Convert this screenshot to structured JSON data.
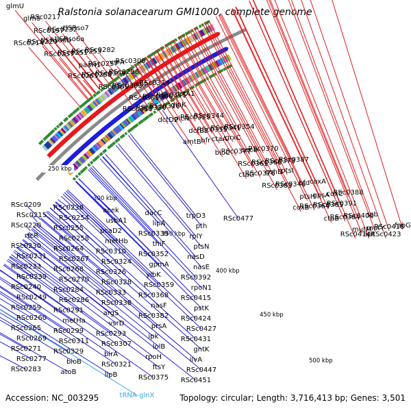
{
  "title": "Ralstonia solanacearum GMI1000, complete genome",
  "footer": {
    "accession": "Accession: NC_003295",
    "summary": "Topology: circular; Length: 3,716,413 bp; Genes: 3,501"
  },
  "colors": {
    "forward_strand": "#e41a1c",
    "reverse_strand": "#1f1fd8",
    "rna_label": "#39a8e0",
    "backbone": "#8a8a8a",
    "feature_marker": "#2e8b2e"
  },
  "scale_labels": [
    "250 kbp",
    "300 kbp",
    "350 kbp",
    "400 kbp",
    "450 kbp",
    "500 kbp"
  ],
  "forward_labels": [
    "glmU",
    "glmS",
    "RSc0197",
    "RSc0214",
    "RSc0217",
    "RSc0232",
    "RSc0229",
    "RSc0237",
    "tlSRso7",
    "tlSRso6b",
    "RSc0251",
    "paaH1",
    "tlSRso6a",
    "RSc0253",
    "RSc0257",
    "RSc0281",
    "RSc0282",
    "vsrA",
    "RSc0288",
    "RSc0305",
    "RSc0308",
    "RSc0304",
    "RSc0303",
    "RSc0301",
    "RSc0296",
    "aut",
    "RSc0306",
    "RSc0313",
    "RSc0314",
    "RSc0315",
    "RSc0320",
    "dctD2",
    "dctA1",
    "RSc0316",
    "plcN",
    "dctB2",
    "glnK",
    "RSc0325",
    "RSc0335",
    "amtB",
    "RSc0344",
    "RSc0341",
    "bfr",
    "bioC",
    "RSc0354",
    "ctaA",
    "RSc0377",
    "RSc0361",
    "grxC",
    "secB",
    "RSc0366",
    "ctaG",
    "RSc0370",
    "RSc0373",
    "RSc0376",
    "RSc0383",
    "RSc0387",
    "gshB",
    "RSc0346",
    "ptsH",
    "ptsI",
    "bfd",
    "gpsA",
    "coxB",
    "coxA",
    "coxC",
    "RSc0364",
    "ctaB",
    "RSc0388",
    "RSc0385",
    "RSc0384",
    "mutM",
    "RSc0391",
    "RSc0400",
    "mutY",
    "RSc0414",
    "ssb",
    "RSc0418",
    "apt",
    "RSc0423",
    "fabG"
  ],
  "reverse_labels": [
    "RSc0209",
    "RSc0215",
    "RSc0220",
    "rtcR",
    "RSc0230",
    "RSc0231",
    "RSc0233",
    "RSc0239",
    "RSc0240",
    "RSc0249",
    "RSc0259",
    "RSc0260",
    "RSc0265",
    "RSc0269",
    "RSc0271",
    "RSc0277",
    "RSc0283",
    "RSc0238",
    "RSc0254",
    "RSc0255",
    "RSc0258",
    "RSc0264",
    "RSc0267",
    "RSc0268",
    "RSc0270",
    "RSc0284",
    "RSc0286",
    "RSc0291",
    "metHa",
    "RSc0299",
    "RSc0311",
    "RSc0329",
    "bioB",
    "atoB",
    "acek",
    "usbA1",
    "pcaD2",
    "metHb",
    "RSc0310",
    "RSc0324",
    "RSc0326",
    "RSc0328",
    "RSc0333",
    "RSc0338",
    "argS",
    "vsrD",
    "RSc0293",
    "RSc0307",
    "birA",
    "RSc0321",
    "lipB",
    "dacC",
    "lipA",
    "RSc0339",
    "thiF",
    "RSc0352",
    "gpmA",
    "yibK",
    "RSc0359",
    "RSc0368",
    "nasF",
    "RSc0382",
    "prsA",
    "ipk",
    "lolB",
    "rpoH",
    "ftsY",
    "RSc0375",
    "trpD3",
    "pth",
    "rplY",
    "ptsN",
    "nasD",
    "nasE",
    "RSc0392",
    "rpoN1",
    "RSc0415",
    "pstK",
    "RSc0424",
    "RSc0427",
    "RSc0431",
    "gntK",
    "ilvA",
    "RSc0447",
    "RSc0451",
    "RSc0477"
  ],
  "rna_labels": [
    "tRNA-glnX"
  ]
}
